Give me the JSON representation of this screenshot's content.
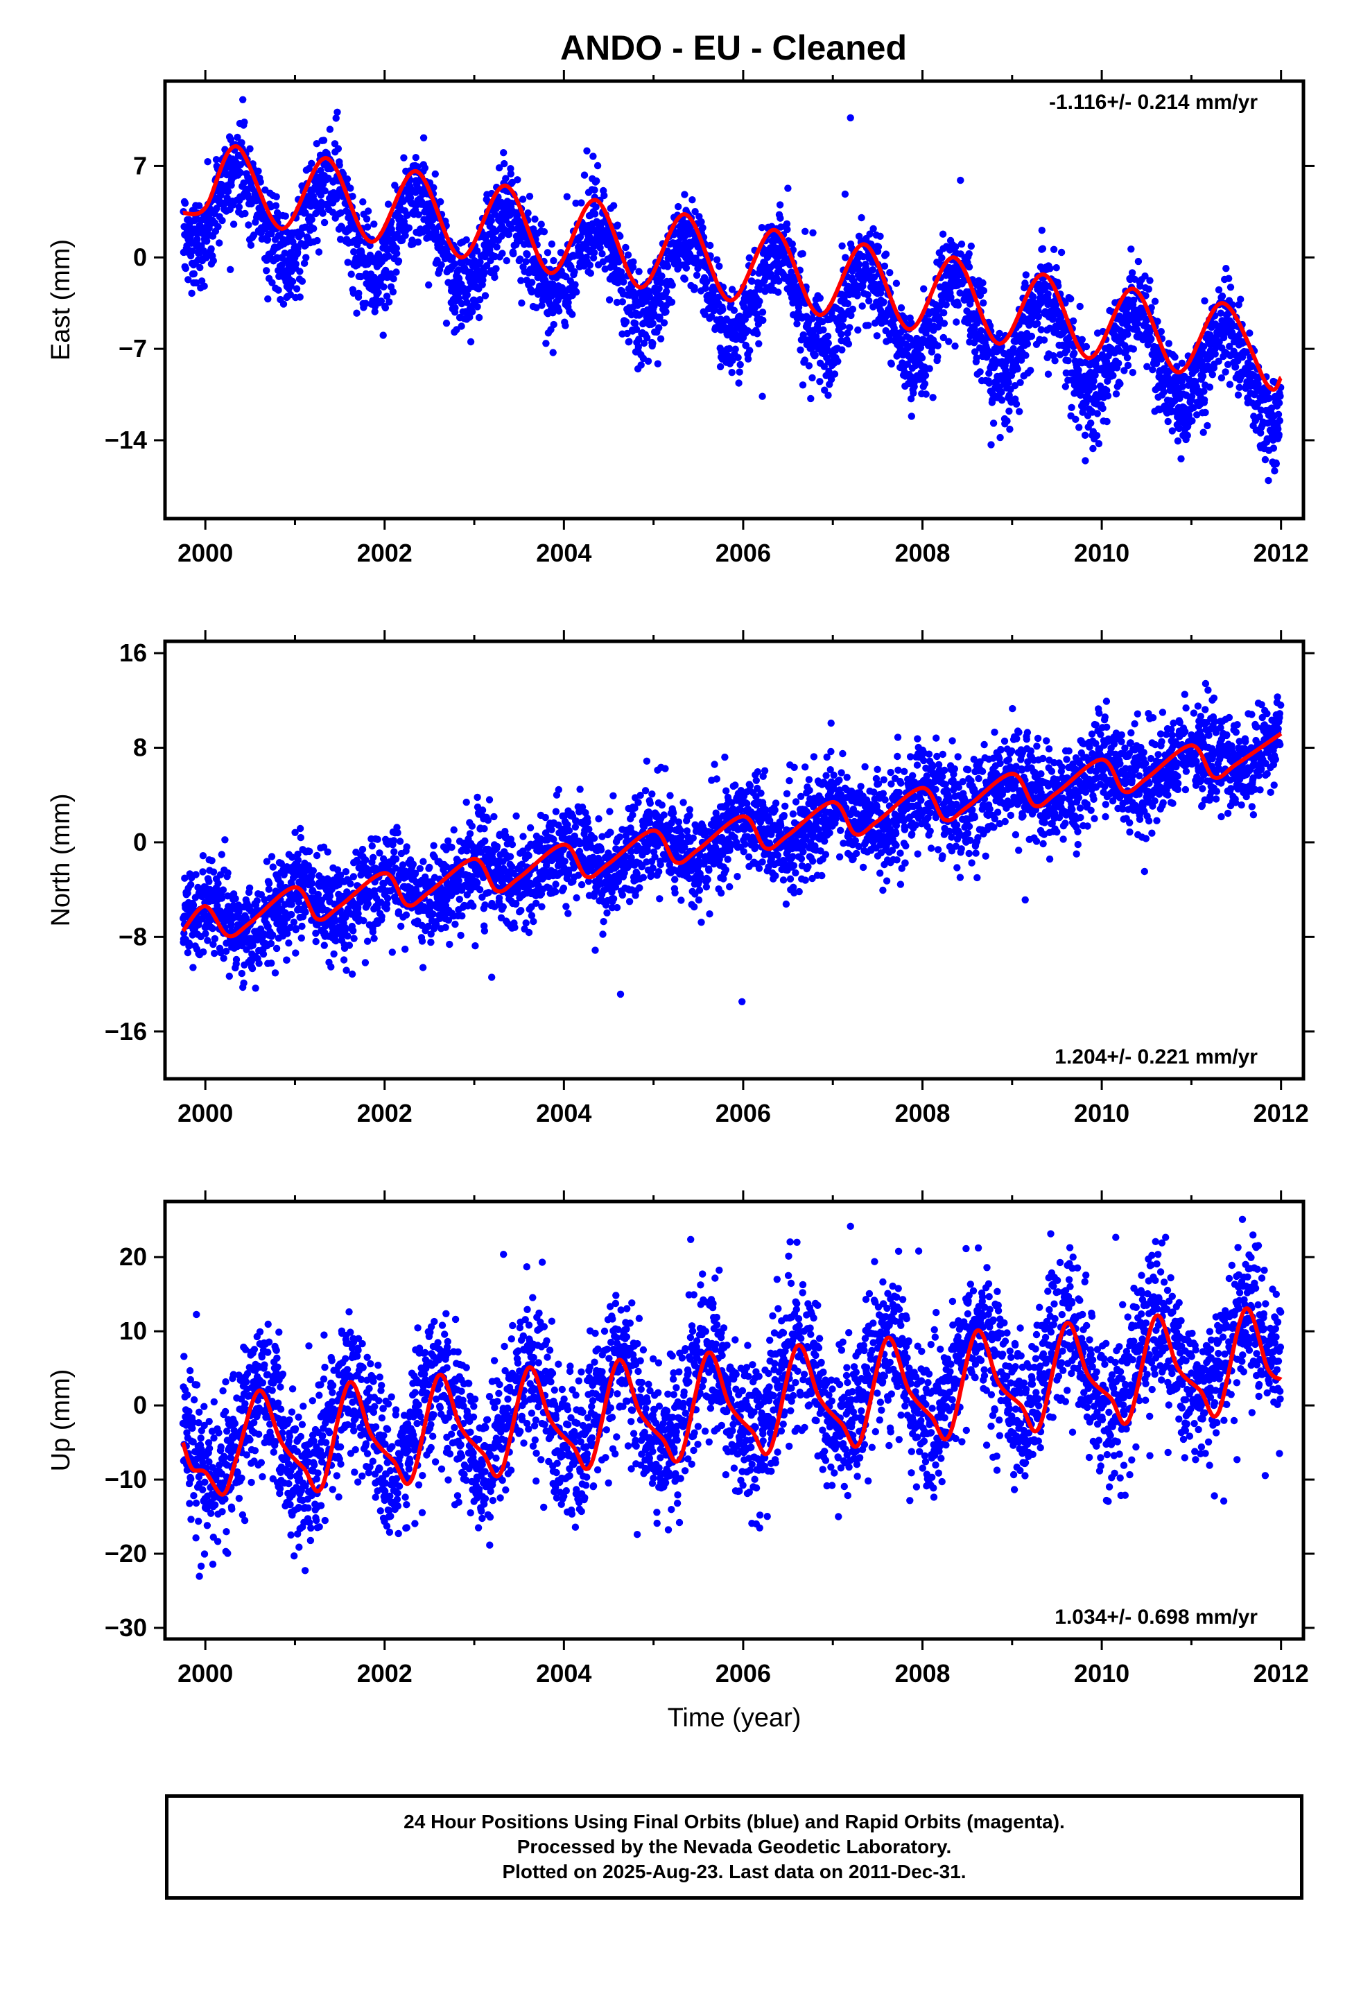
{
  "title": "ANDO  - EU - Cleaned",
  "chart_data": [
    {
      "type": "scatter",
      "component": "East",
      "ylabel": "East (mm)",
      "ylim": [
        -20,
        13.5
      ],
      "yticks": [
        7,
        0,
        -7,
        -14
      ],
      "xlim": [
        1999.55,
        2012.25
      ],
      "xticks": [
        2000,
        2002,
        2004,
        2006,
        2008,
        2010,
        2012
      ],
      "xlabel": "",
      "rate_label": "-1.116+/- 0.214 mm/yr",
      "rate_position": "top-right",
      "series": [
        {
          "name": "Final Orbits (blue)",
          "color": "#0000ff",
          "kind": "daily positions",
          "x_start": 1999.75,
          "x_end": 2011.997,
          "trend_at_2000": 4.2,
          "rate_mm_per_yr": -1.116,
          "annual_amp": 3.4,
          "annual_peak_frac": 0.38,
          "scatter_sd": 1.8
        },
        {
          "name": "Model fit (red)",
          "color": "#ff0000",
          "kind": "curve",
          "x": [
            1999.75,
            2000.0,
            2000.35,
            2000.85,
            2001.35,
            2001.85,
            2002.35,
            2002.85,
            2003.35,
            2003.85,
            2004.35,
            2004.85,
            2005.35,
            2005.85,
            2006.35,
            2006.85,
            2007.35,
            2007.85,
            2008.35,
            2008.85,
            2009.35,
            2009.85,
            2010.35,
            2010.85,
            2011.35,
            2011.85,
            2012.0
          ],
          "y": [
            3.4,
            3.8,
            8.5,
            2.2,
            7.6,
            1.2,
            6.6,
            0.0,
            5.5,
            -1.2,
            4.4,
            -2.3,
            3.3,
            -3.3,
            2.1,
            -4.4,
            1.0,
            -5.5,
            0.0,
            -6.6,
            -1.3,
            -7.7,
            -2.4,
            -8.8,
            -3.5,
            -9.8,
            -9.2
          ]
        }
      ]
    },
    {
      "type": "scatter",
      "component": "North",
      "ylabel": "North (mm)",
      "ylim": [
        -20,
        17
      ],
      "yticks": [
        16,
        8,
        0,
        -8,
        -16
      ],
      "xlim": [
        1999.55,
        2012.25
      ],
      "xticks": [
        2000,
        2002,
        2004,
        2006,
        2008,
        2010,
        2012
      ],
      "xlabel": "",
      "rate_label": "1.204+/- 0.221 mm/yr",
      "rate_position": "bottom-right",
      "series": [
        {
          "name": "Final Orbits (blue)",
          "color": "#0000ff",
          "kind": "daily positions",
          "x_start": 1999.75,
          "x_end": 2011.997,
          "trend_at_2000": -6.6,
          "rate_mm_per_yr": 1.204,
          "annual_amp": 1.3,
          "annual_peak_frac": 0.02,
          "scatter_sd": 2.0
        },
        {
          "name": "Model fit (red)",
          "color": "#ff0000",
          "kind": "curve",
          "x": [
            1999.75,
            2000.0,
            2000.25,
            2000.5,
            2001.0,
            2001.25,
            2001.5,
            2002.0,
            2002.25,
            2002.5,
            2003.0,
            2003.25,
            2003.5,
            2004.0,
            2004.25,
            2004.5,
            2005.0,
            2005.25,
            2005.5,
            2006.0,
            2006.25,
            2006.5,
            2007.0,
            2007.25,
            2007.5,
            2008.0,
            2008.25,
            2008.5,
            2009.0,
            2009.25,
            2009.5,
            2010.0,
            2010.25,
            2010.5,
            2011.0,
            2011.25,
            2011.5,
            2012.0
          ],
          "y": [
            -7.5,
            -5.4,
            -7.9,
            -6.8,
            -3.8,
            -6.5,
            -5.4,
            -2.6,
            -5.3,
            -4.2,
            -1.4,
            -4.1,
            -3.0,
            -0.2,
            -2.9,
            -1.8,
            1.0,
            -1.7,
            -0.6,
            2.2,
            -0.5,
            0.6,
            3.4,
            0.7,
            1.8,
            4.6,
            1.9,
            3.0,
            5.8,
            3.1,
            4.2,
            7.0,
            4.3,
            5.4,
            8.2,
            5.5,
            6.6,
            9.2
          ]
        }
      ]
    },
    {
      "type": "scatter",
      "component": "Up",
      "ylabel": "Up (mm)",
      "ylim": [
        -31.5,
        27.5
      ],
      "yticks": [
        20,
        10,
        0,
        -10,
        -20,
        -30
      ],
      "xlim": [
        1999.55,
        2012.25
      ],
      "xticks": [
        2000,
        2002,
        2004,
        2006,
        2008,
        2010,
        2012
      ],
      "xlabel": "Time (year)",
      "rate_label": "1.034+/- 0.698 mm/yr",
      "rate_position": "bottom-right",
      "series": [
        {
          "name": "Final Orbits (blue)",
          "color": "#0000ff",
          "kind": "daily positions",
          "x_start": 1999.75,
          "x_end": 2011.997,
          "trend_at_2000": -5.0,
          "rate_mm_per_yr": 1.034,
          "annual_amp": 6.0,
          "annual_peak_frac": 0.6,
          "scatter_sd": 5.0
        },
        {
          "name": "Model fit (red)",
          "color": "#ff0000",
          "kind": "curve",
          "x": [
            1999.75,
            1999.85,
            2000.0,
            2000.2,
            2000.35,
            2000.6,
            2000.85,
            2001.1,
            2001.3,
            2001.6,
            2001.85,
            2002.1,
            2002.3,
            2002.6,
            2002.85,
            2003.1,
            2003.3,
            2003.6,
            2003.85,
            2004.1,
            2004.3,
            2004.6,
            2004.85,
            2005.1,
            2005.3,
            2005.6,
            2005.85,
            2006.1,
            2006.3,
            2006.6,
            2006.85,
            2007.1,
            2007.3,
            2007.6,
            2007.85,
            2008.1,
            2008.3,
            2008.6,
            2008.85,
            2009.1,
            2009.3,
            2009.6,
            2009.85,
            2010.1,
            2010.3,
            2010.6,
            2010.85,
            2011.1,
            2011.3,
            2011.6,
            2011.85,
            2012.0
          ],
          "y": [
            -5,
            -8.5,
            -9.0,
            -12.0,
            -7.0,
            2.0,
            -5.0,
            -8.5,
            -11.0,
            3.0,
            -4.0,
            -7.5,
            -10.0,
            4.0,
            -3.0,
            -6.5,
            -9.0,
            5.0,
            -2.0,
            -5.5,
            -8.0,
            6.0,
            -1.0,
            -4.5,
            -7.0,
            7.0,
            0.0,
            -3.5,
            -6.0,
            8.0,
            1.0,
            -2.5,
            -5.0,
            9.0,
            2.0,
            -1.5,
            -4.0,
            10.0,
            3.0,
            0.0,
            -3.0,
            11.0,
            4.0,
            1.0,
            -2.0,
            12.0,
            5.0,
            2.0,
            -1.0,
            13.0,
            5.0,
            3.5
          ]
        }
      ]
    }
  ],
  "footer": {
    "line1": "24 Hour Positions Using Final Orbits (blue) and Rapid Orbits (magenta).",
    "line2": "Processed by the Nevada Geodetic Laboratory.",
    "line3": "Plotted on 2025-Aug-23. Last data on 2011-Dec-31."
  }
}
